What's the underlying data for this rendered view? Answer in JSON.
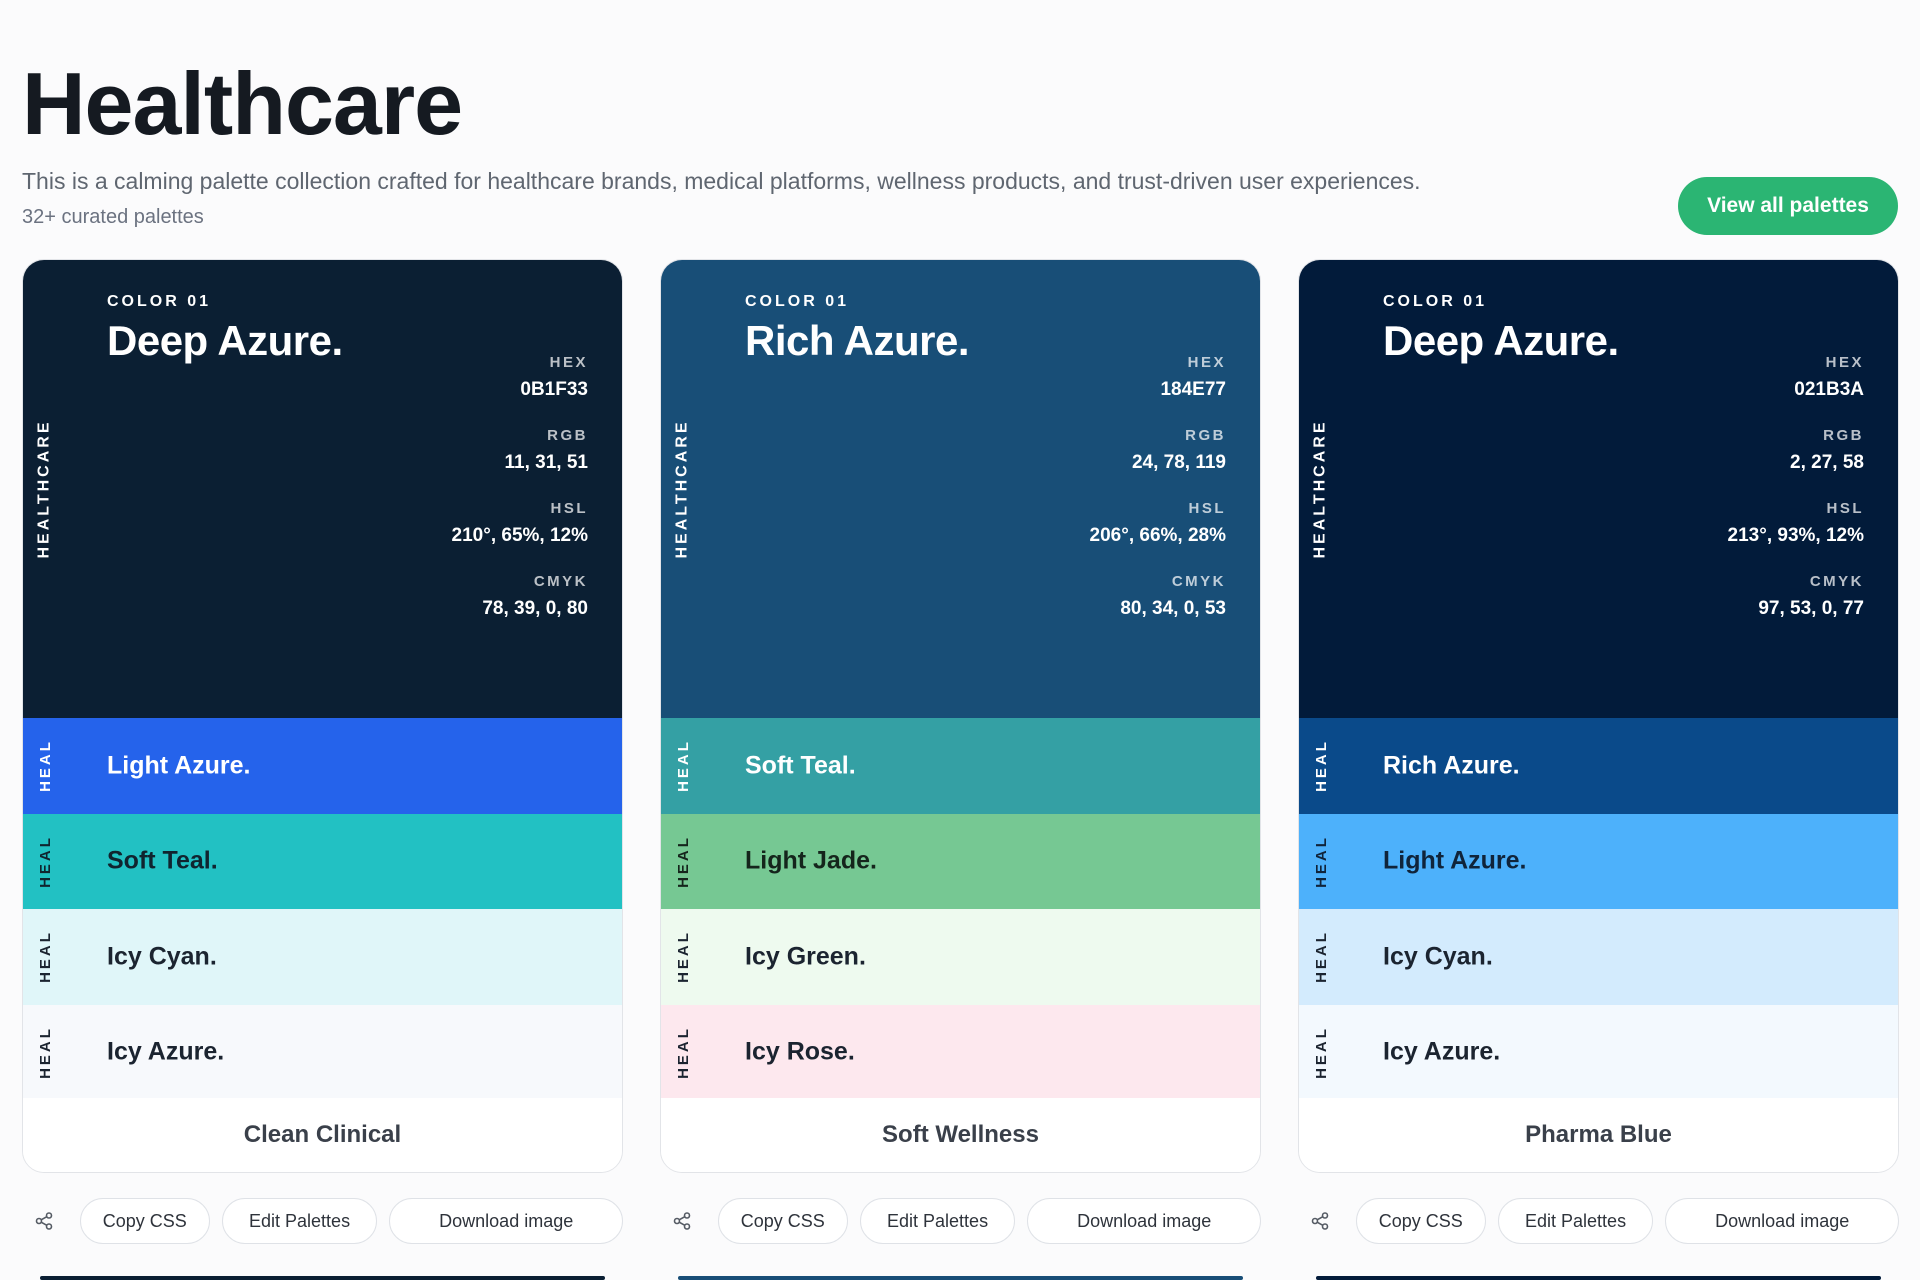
{
  "page": {
    "title": "Healthcare",
    "description": "This is a calming palette collection crafted for healthcare brands, medical platforms, wellness products, and trust-driven user experiences.",
    "count": "32+ curated palettes",
    "view_all_label": "View all palettes",
    "accent_color": "#2bb573"
  },
  "labels": {
    "color_kicker": "COLOR 01",
    "hex": "HEX",
    "rgb": "RGB",
    "hsl": "HSL",
    "cmyk": "CMYK",
    "vertical_main": "HEALTHCARE",
    "vertical_short": "HEAL"
  },
  "actions": {
    "copy_css": "Copy CSS",
    "edit_palettes": "Edit Palettes",
    "download_image": "Download image",
    "share_icon": "share-icon"
  },
  "palettes": [
    {
      "name": "Clean Clinical",
      "main": {
        "name": "Deep Azure.",
        "hex": "0B1F33",
        "rgb": "11, 31, 51",
        "hsl": "210°, 65%, 12%",
        "cmyk": "78, 39, 0, 80",
        "color": "#0b1f33",
        "text_color": "#ffffff"
      },
      "swatches": [
        {
          "name": "Light Azure.",
          "color": "#2563eb",
          "text_color": "#ffffff"
        },
        {
          "name": "Soft Teal.",
          "color": "#22c1c3",
          "text_color": "#10242f"
        },
        {
          "name": "Icy Cyan.",
          "color": "#e0f6f9",
          "text_color": "#1b2430"
        },
        {
          "name": "Icy Azure.",
          "color": "#f7f9fc",
          "text_color": "#1b2430"
        }
      ]
    },
    {
      "name": "Soft Wellness",
      "main": {
        "name": "Rich Azure.",
        "hex": "184E77",
        "rgb": "24, 78, 119",
        "hsl": "206°, 66%, 28%",
        "cmyk": "80, 34, 0, 53",
        "color": "#184e77",
        "text_color": "#ffffff"
      },
      "swatches": [
        {
          "name": "Soft Teal.",
          "color": "#34a0a4",
          "text_color": "#ffffff"
        },
        {
          "name": "Light Jade.",
          "color": "#76c893",
          "text_color": "#15251c"
        },
        {
          "name": "Icy Green.",
          "color": "#eefaef",
          "text_color": "#1b2430"
        },
        {
          "name": "Icy Rose.",
          "color": "#fde8ee",
          "text_color": "#1b2430"
        }
      ]
    },
    {
      "name": "Pharma Blue",
      "main": {
        "name": "Deep Azure.",
        "hex": "021B3A",
        "rgb": "2, 27, 58",
        "hsl": "213°, 93%, 12%",
        "cmyk": "97, 53, 0, 77",
        "color": "#021b3a",
        "text_color": "#ffffff"
      },
      "swatches": [
        {
          "name": "Rich Azure.",
          "color": "#0a4a8a",
          "text_color": "#ffffff"
        },
        {
          "name": "Light Azure.",
          "color": "#4db1fb",
          "text_color": "#10243a"
        },
        {
          "name": "Icy Cyan.",
          "color": "#d3ebfd",
          "text_color": "#1b2430"
        },
        {
          "name": "Icy Azure.",
          "color": "#f3f9fe",
          "text_color": "#1b2430"
        }
      ]
    }
  ]
}
